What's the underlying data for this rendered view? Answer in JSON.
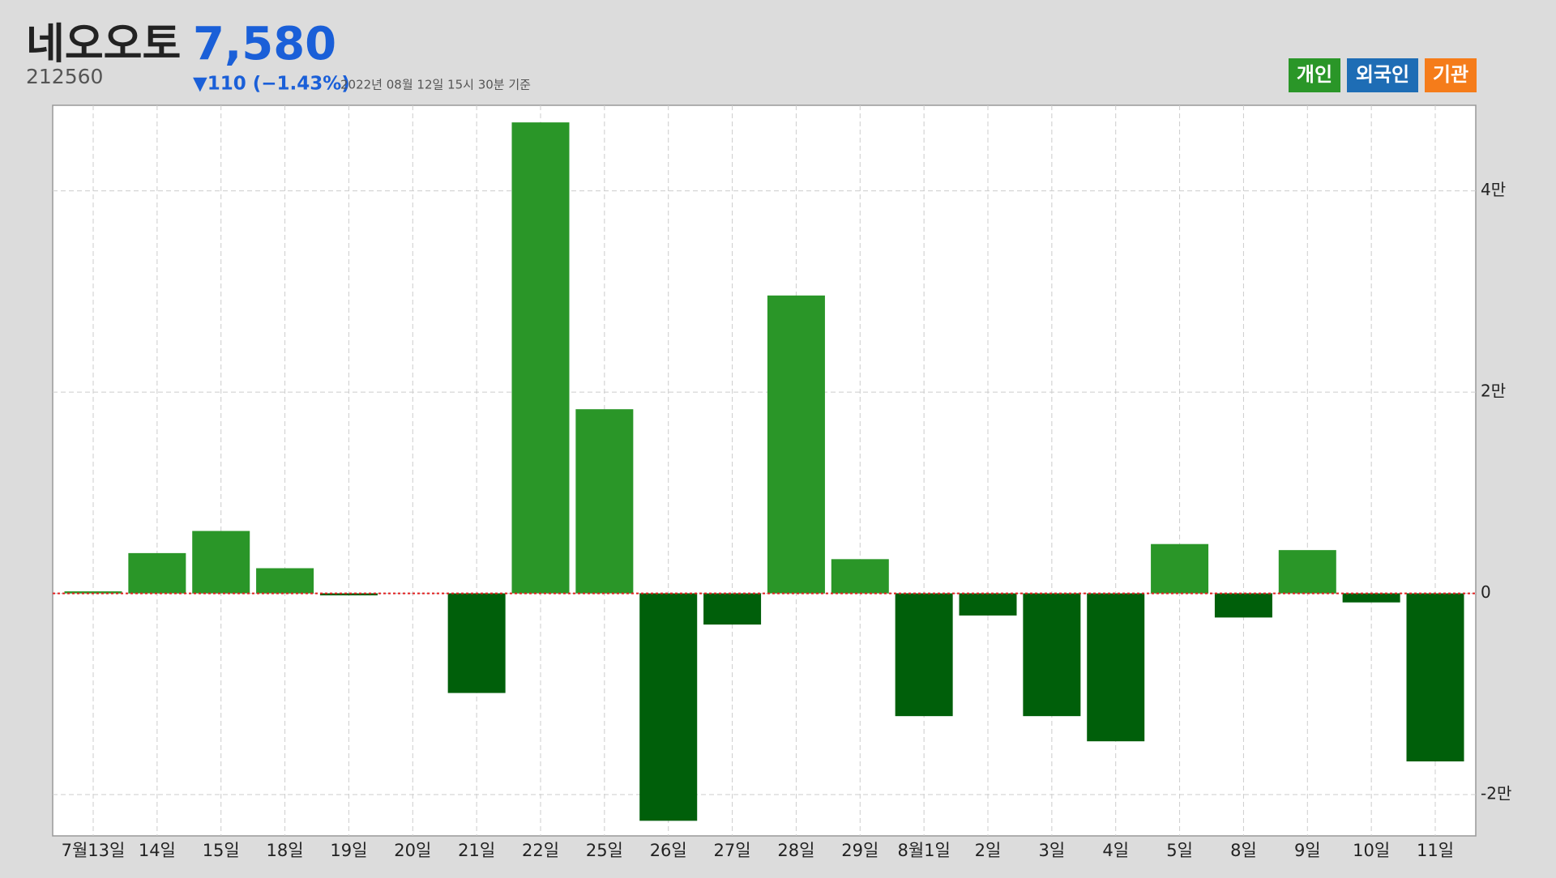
{
  "chart_data": {
    "type": "bar",
    "title": "네오오토",
    "price": "7,580",
    "code": "212560",
    "change": "▼110 (−1.43%)",
    "timestamp": "2022년 08월 12일 15시 30분 기준",
    "categories": [
      "7월13일",
      "14일",
      "15일",
      "18일",
      "19일",
      "20일",
      "21일",
      "22일",
      "25일",
      "26일",
      "27일",
      "28일",
      "29일",
      "8월1일",
      "2일",
      "3일",
      "4일",
      "5일",
      "8일",
      "9일",
      "10일",
      "11일"
    ],
    "series": [
      {
        "name": "개인",
        "color": "#2a9628",
        "negative_color": "#005f0a",
        "values": [
          200,
          4000,
          6200,
          2500,
          -200,
          0,
          -9900,
          46800,
          18300,
          -22600,
          -3100,
          29600,
          3400,
          -12200,
          -2200,
          -12200,
          -14700,
          4900,
          -2400,
          4300,
          -900,
          -16700
        ]
      }
    ],
    "other_buttons": [
      {
        "name": "외국인",
        "color": "#1e6db5"
      },
      {
        "name": "기관",
        "color": "#f57c1a"
      }
    ],
    "ylim": [
      -24100,
      48500
    ],
    "yticks": [
      {
        "value": -20000,
        "label": "-2만"
      },
      0,
      {
        "value": 20000,
        "label": "2만"
      },
      {
        "value": 40000,
        "label": "4만"
      }
    ],
    "grid": true,
    "zero_line_color": "#e02020"
  }
}
